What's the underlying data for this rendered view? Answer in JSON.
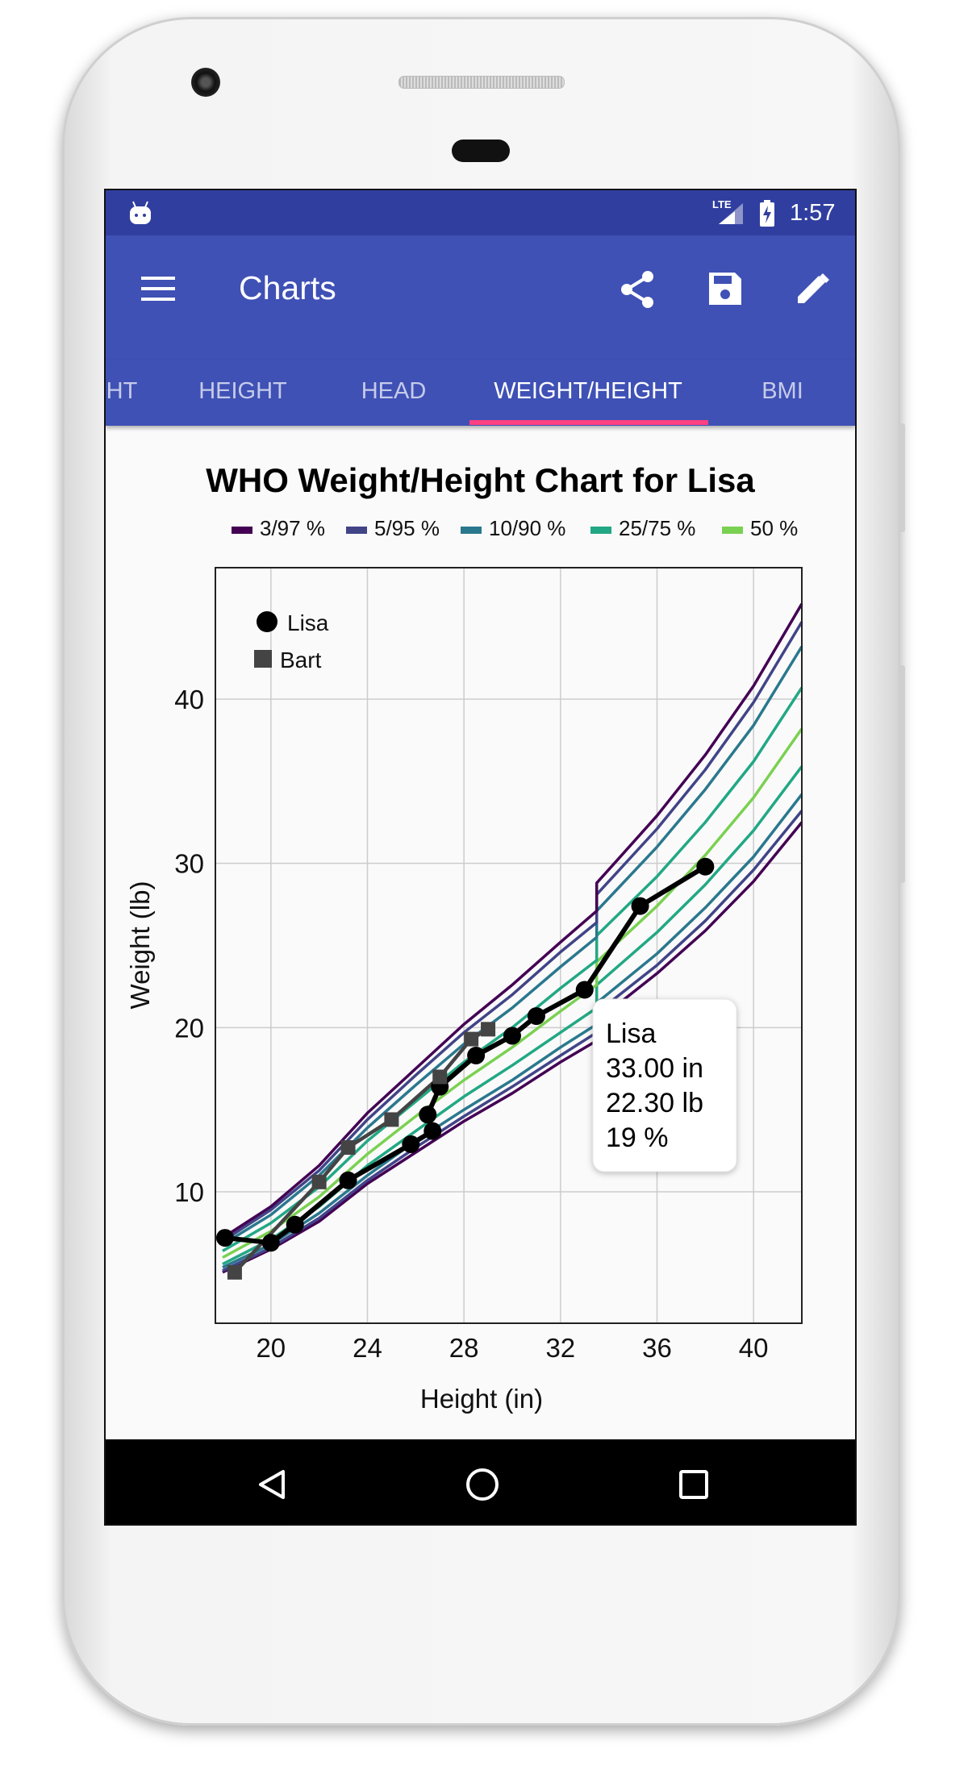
{
  "status_bar": {
    "time": "1:57",
    "network": "LTE"
  },
  "app_bar": {
    "title": "Charts",
    "actions": [
      "share-icon",
      "save-icon",
      "edit-icon"
    ]
  },
  "tabs": [
    {
      "label": "HT"
    },
    {
      "label": "HEIGHT"
    },
    {
      "label": "HEAD"
    },
    {
      "label": "WEIGHT/HEIGHT",
      "active": true
    },
    {
      "label": "BMI"
    }
  ],
  "colors": {
    "primary": "#3f51b5",
    "primary_dark": "#303f9f",
    "tab_indicator": "#ff4081"
  },
  "chart_data": {
    "type": "line",
    "title": "WHO Weight/Height Chart for Lisa",
    "xlabel": "Height (in)",
    "ylabel": "Weight (lb)",
    "xlim": [
      17.7,
      42
    ],
    "ylim": [
      2,
      48
    ],
    "xticks": [
      20,
      24,
      28,
      32,
      36,
      40
    ],
    "yticks": [
      10,
      20,
      30,
      40
    ],
    "grid": true,
    "percentile_legend": [
      {
        "label": "3/97 %",
        "color": "#440154"
      },
      {
        "label": "5/95 %",
        "color": "#414487"
      },
      {
        "label": "10/90 %",
        "color": "#2a788e"
      },
      {
        "label": "25/75 %",
        "color": "#22a884"
      },
      {
        "label": "50 %",
        "color": "#7ad151"
      }
    ],
    "percentile_x": [
      18,
      20,
      22,
      24,
      26,
      28,
      30,
      32,
      33.5,
      33.5,
      36,
      38,
      40,
      42
    ],
    "percentile_series": [
      {
        "name": "3",
        "color": "#440154",
        "values": [
          5.1,
          6.5,
          8.2,
          10.5,
          12.4,
          14.3,
          16.0,
          17.9,
          19.2,
          20.4,
          23.3,
          25.9,
          28.9,
          32.5
        ]
      },
      {
        "name": "5",
        "color": "#414487",
        "values": [
          5.2,
          6.6,
          8.4,
          10.7,
          12.7,
          14.6,
          16.4,
          18.3,
          19.7,
          20.9,
          23.8,
          26.5,
          29.6,
          33.2
        ]
      },
      {
        "name": "10",
        "color": "#2a788e",
        "values": [
          5.4,
          6.8,
          8.7,
          11.0,
          13.1,
          15.0,
          16.8,
          18.8,
          20.2,
          21.5,
          24.5,
          27.3,
          30.4,
          34.2
        ]
      },
      {
        "name": "25",
        "color": "#22a884",
        "values": [
          5.6,
          7.1,
          9.1,
          11.6,
          13.7,
          15.8,
          17.7,
          19.7,
          21.2,
          22.6,
          25.8,
          28.7,
          32.0,
          35.9
        ]
      },
      {
        "name": "50",
        "color": "#7ad151",
        "values": [
          6.0,
          7.6,
          9.7,
          12.3,
          14.6,
          16.8,
          18.8,
          21.0,
          22.6,
          24.0,
          27.4,
          30.5,
          34.0,
          38.2
        ]
      },
      {
        "name": "75",
        "color": "#22a884",
        "values": [
          6.4,
          8.1,
          10.3,
          13.1,
          15.5,
          17.9,
          20.0,
          22.4,
          24.1,
          25.6,
          29.2,
          32.5,
          36.2,
          40.7
        ]
      },
      {
        "name": "90",
        "color": "#2a788e",
        "values": [
          6.8,
          8.6,
          11.0,
          13.9,
          16.5,
          19.0,
          21.2,
          23.7,
          25.5,
          27.1,
          31.0,
          34.5,
          38.4,
          43.2
        ]
      },
      {
        "name": "95",
        "color": "#414487",
        "values": [
          7.0,
          8.9,
          11.3,
          14.4,
          17.1,
          19.7,
          22.0,
          24.6,
          26.4,
          28.1,
          32.1,
          35.7,
          39.8,
          44.7
        ]
      },
      {
        "name": "97",
        "color": "#440154",
        "values": [
          7.2,
          9.1,
          11.6,
          14.8,
          17.5,
          20.2,
          22.6,
          25.2,
          27.1,
          28.8,
          32.9,
          36.6,
          40.8,
          45.8
        ]
      }
    ],
    "series": [
      {
        "name": "Lisa",
        "marker": "circle",
        "color": "#000000",
        "x": [
          18.1,
          20.0,
          21.0,
          23.2,
          25.8,
          26.7,
          26.5,
          27.0,
          28.5,
          30.0,
          31.0,
          33.0,
          35.3,
          38.0
        ],
        "y": [
          7.2,
          6.9,
          8.0,
          10.7,
          12.9,
          13.7,
          14.7,
          16.4,
          18.3,
          19.5,
          20.7,
          22.3,
          27.4,
          29.8
        ]
      },
      {
        "name": "Bart",
        "marker": "square",
        "color": "#444444",
        "x": [
          18.5,
          22.0,
          23.2,
          25.0,
          27.0,
          28.3,
          29.0
        ],
        "y": [
          5.1,
          10.6,
          12.7,
          14.4,
          17.0,
          19.3,
          19.9
        ]
      }
    ],
    "tooltip": {
      "name": "Lisa",
      "height": "33.00 in",
      "weight": "22.30 lb",
      "percentile": "19 %"
    }
  }
}
